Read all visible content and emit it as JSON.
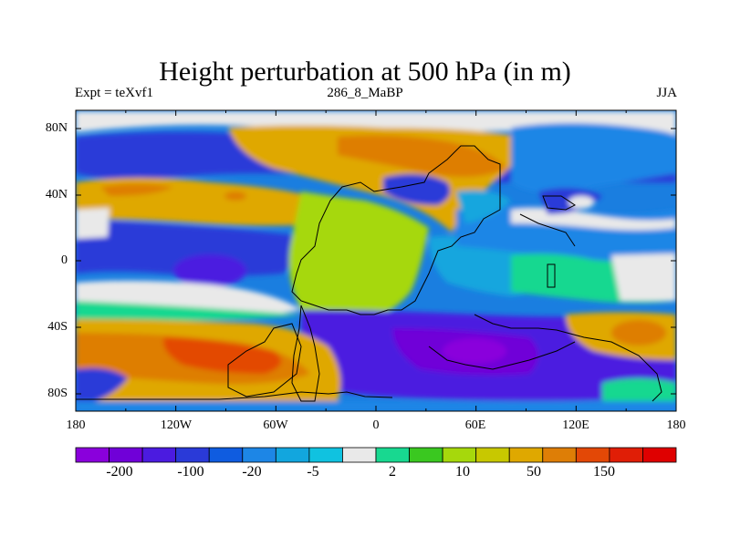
{
  "title": "Height perturbation at 500 hPa (in m)",
  "subtitle_left": "Expt = teXvf1",
  "subtitle_center": "286_8_MaBP",
  "subtitle_right": "JJA",
  "y_ticks": [
    "80N",
    "40N",
    "0",
    "40S",
    "80S"
  ],
  "x_ticks": [
    "180",
    "120W",
    "60W",
    "0",
    "60E",
    "120E",
    "180"
  ],
  "colorbar": {
    "labels": [
      "-200",
      "-100",
      "-20",
      "-5",
      "2",
      "10",
      "50",
      "150"
    ],
    "colors": [
      "#8a00dc",
      "#7000d8",
      "#4b1be0",
      "#2a3ad8",
      "#0f5ce0",
      "#1d86e6",
      "#12a6de",
      "#10c2e0",
      "#e9e9e9",
      "#18d890",
      "#3ac820",
      "#a6d80c",
      "#c8c800",
      "#dfa800",
      "#de7e06",
      "#e34806",
      "#e01e06",
      "#df0000"
    ]
  },
  "colors": {
    "ocean_bg": "#1a7ee0",
    "coast": "#000000"
  }
}
